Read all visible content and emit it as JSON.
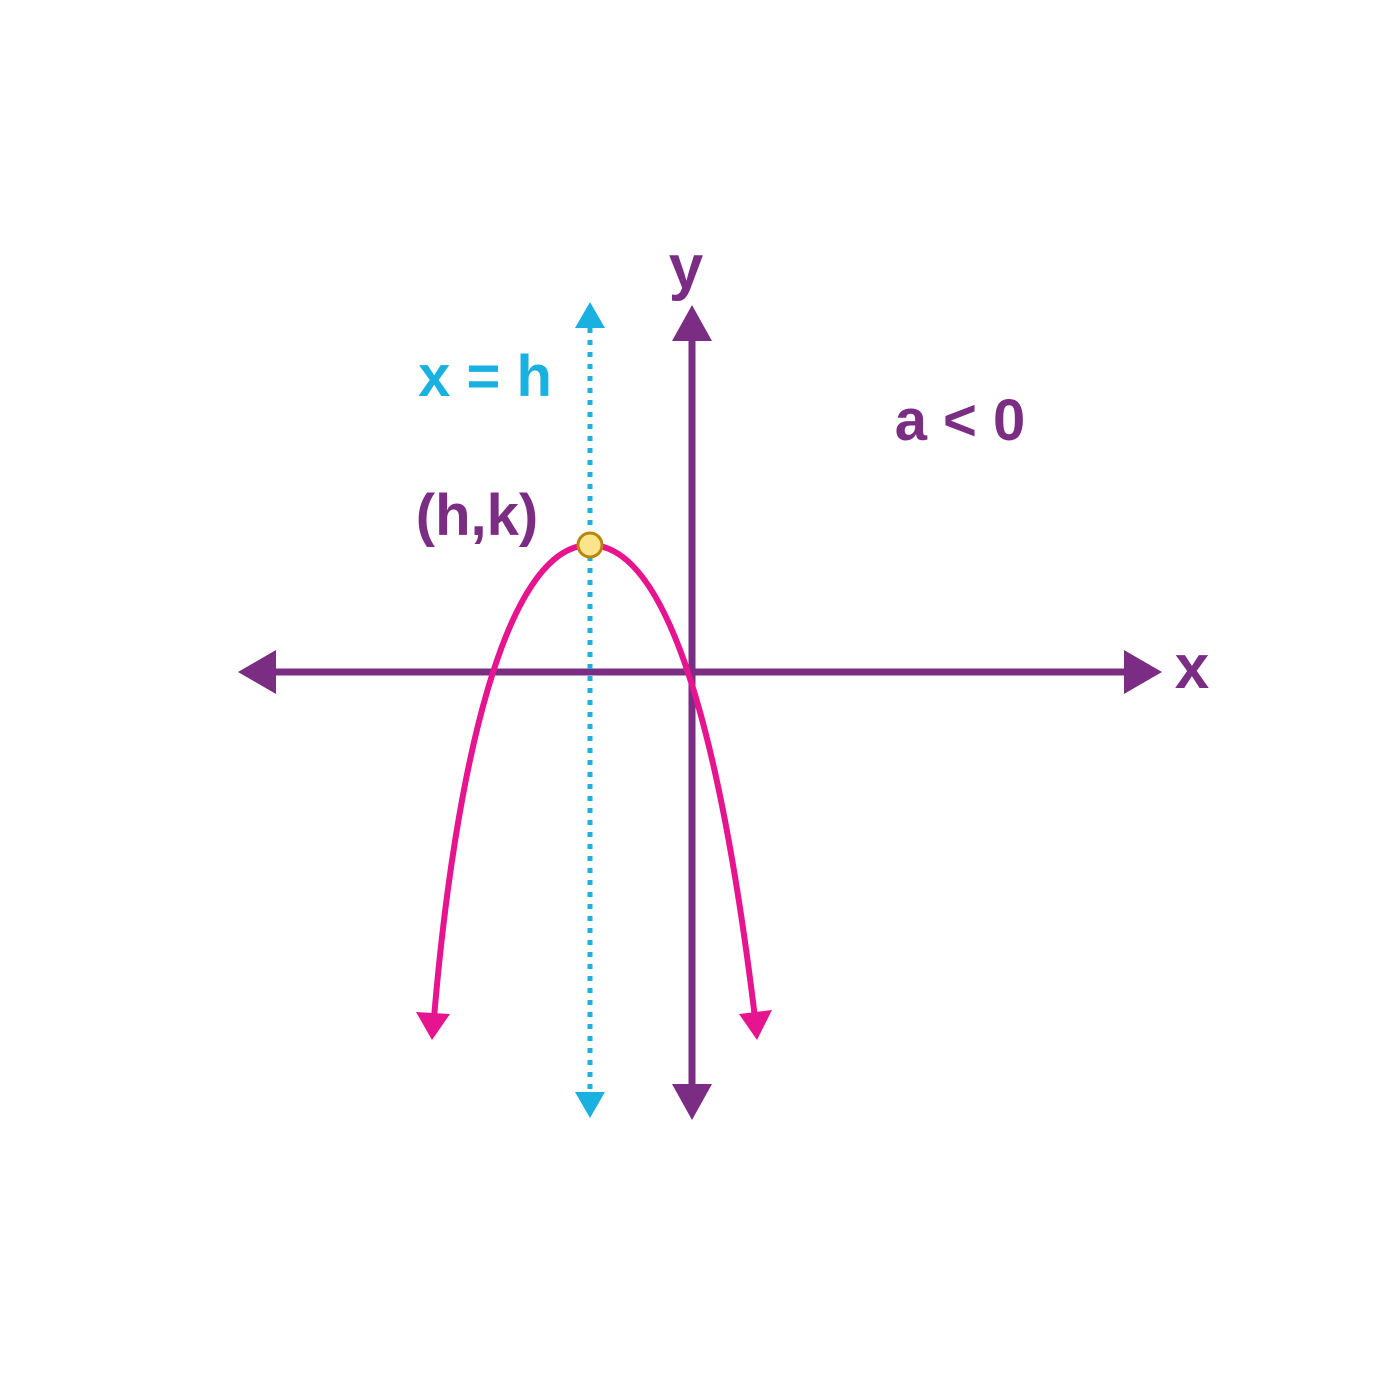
{
  "labels": {
    "y_axis": "y",
    "x_axis": "x",
    "axis_of_symmetry": "x = h",
    "vertex": "(h,k)",
    "condition": "a < 0"
  },
  "colors": {
    "axes": "#7a2d83",
    "parabola": "#e6158f",
    "symmetry_line": "#1ab0e0",
    "vertex_fill": "#fbe58c",
    "vertex_stroke": "#b8860b",
    "background": "#ffffff"
  }
}
